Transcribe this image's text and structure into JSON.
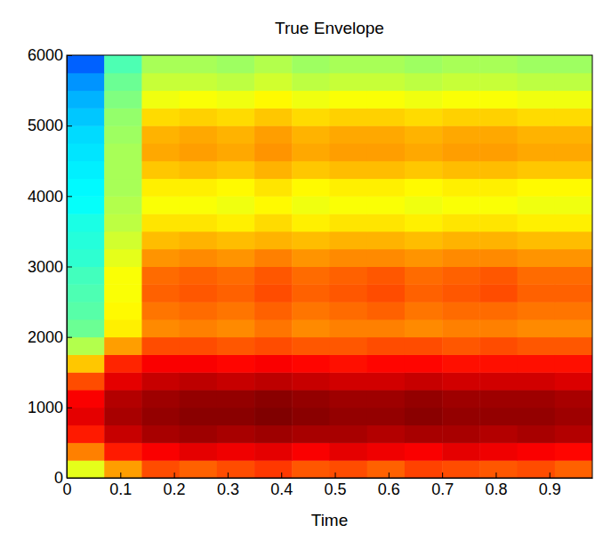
{
  "chart_data": {
    "type": "heatmap",
    "title": "True Envelope",
    "x_label": "Time",
    "xlim": [
      0,
      0.98
    ],
    "xticks": [
      0,
      0.1,
      0.2,
      0.3,
      0.4,
      0.5,
      0.6,
      0.7,
      0.8,
      0.9
    ],
    "ylim": [
      0,
      6000
    ],
    "yticks": [
      0,
      1000,
      2000,
      3000,
      4000,
      5000,
      6000
    ],
    "x_bins": [
      0,
      0.07,
      0.14,
      0.21,
      0.28,
      0.35,
      0.42,
      0.49,
      0.56,
      0.63,
      0.7,
      0.77,
      0.84,
      0.91,
      0.98
    ],
    "y_bins": [
      0,
      250,
      500,
      750,
      1000,
      1250,
      1500,
      1750,
      2000,
      2250,
      2500,
      2750,
      3000,
      3250,
      3500,
      3750,
      4000,
      4250,
      4500,
      4750,
      5000,
      5250,
      5500,
      5750,
      6000
    ],
    "zlim": [
      0,
      1
    ],
    "z": [
      [
        0.6,
        0.72,
        0.8,
        0.78,
        0.8,
        0.82,
        0.79,
        0.8,
        0.78,
        0.81,
        0.8,
        0.79,
        0.8,
        0.78
      ],
      [
        0.75,
        0.85,
        0.88,
        0.9,
        0.89,
        0.9,
        0.88,
        0.9,
        0.89,
        0.88,
        0.9,
        0.89,
        0.88,
        0.87
      ],
      [
        0.85,
        0.93,
        0.96,
        0.97,
        0.96,
        0.97,
        0.96,
        0.96,
        0.95,
        0.96,
        0.96,
        0.95,
        0.96,
        0.95
      ],
      [
        0.9,
        0.96,
        0.98,
        0.99,
        0.99,
        1,
        0.99,
        0.98,
        0.98,
        0.99,
        0.98,
        0.98,
        0.98,
        0.97
      ],
      [
        0.88,
        0.95,
        0.97,
        0.98,
        0.98,
        0.99,
        0.98,
        0.97,
        0.97,
        0.98,
        0.97,
        0.97,
        0.97,
        0.96
      ],
      [
        0.8,
        0.9,
        0.93,
        0.94,
        0.93,
        0.94,
        0.93,
        0.92,
        0.92,
        0.93,
        0.92,
        0.92,
        0.92,
        0.91
      ],
      [
        0.68,
        0.84,
        0.88,
        0.88,
        0.87,
        0.88,
        0.87,
        0.86,
        0.87,
        0.87,
        0.86,
        0.86,
        0.86,
        0.86
      ],
      [
        0.55,
        0.72,
        0.8,
        0.8,
        0.79,
        0.8,
        0.79,
        0.79,
        0.8,
        0.8,
        0.79,
        0.8,
        0.79,
        0.79
      ],
      [
        0.48,
        0.64,
        0.74,
        0.75,
        0.74,
        0.76,
        0.74,
        0.75,
        0.75,
        0.74,
        0.75,
        0.75,
        0.74,
        0.74
      ],
      [
        0.46,
        0.63,
        0.76,
        0.77,
        0.76,
        0.78,
        0.76,
        0.77,
        0.78,
        0.76,
        0.77,
        0.77,
        0.76,
        0.76
      ],
      [
        0.45,
        0.62,
        0.78,
        0.79,
        0.78,
        0.8,
        0.78,
        0.79,
        0.8,
        0.78,
        0.79,
        0.8,
        0.78,
        0.78
      ],
      [
        0.44,
        0.62,
        0.77,
        0.78,
        0.77,
        0.79,
        0.77,
        0.78,
        0.79,
        0.77,
        0.78,
        0.79,
        0.77,
        0.77
      ],
      [
        0.42,
        0.6,
        0.73,
        0.74,
        0.73,
        0.75,
        0.73,
        0.74,
        0.74,
        0.73,
        0.74,
        0.74,
        0.73,
        0.73
      ],
      [
        0.41,
        0.58,
        0.69,
        0.7,
        0.69,
        0.7,
        0.69,
        0.7,
        0.7,
        0.69,
        0.7,
        0.7,
        0.69,
        0.69
      ],
      [
        0.4,
        0.56,
        0.65,
        0.65,
        0.64,
        0.66,
        0.64,
        0.65,
        0.65,
        0.64,
        0.65,
        0.65,
        0.64,
        0.64
      ],
      [
        0.38,
        0.55,
        0.62,
        0.62,
        0.61,
        0.63,
        0.61,
        0.62,
        0.62,
        0.61,
        0.62,
        0.62,
        0.61,
        0.61
      ],
      [
        0.37,
        0.54,
        0.64,
        0.64,
        0.63,
        0.65,
        0.63,
        0.64,
        0.64,
        0.63,
        0.64,
        0.64,
        0.63,
        0.63
      ],
      [
        0.36,
        0.54,
        0.68,
        0.69,
        0.68,
        0.7,
        0.68,
        0.69,
        0.69,
        0.68,
        0.69,
        0.69,
        0.68,
        0.68
      ],
      [
        0.35,
        0.54,
        0.71,
        0.72,
        0.71,
        0.73,
        0.71,
        0.72,
        0.72,
        0.71,
        0.72,
        0.72,
        0.71,
        0.71
      ],
      [
        0.34,
        0.53,
        0.7,
        0.71,
        0.7,
        0.72,
        0.7,
        0.71,
        0.71,
        0.7,
        0.71,
        0.71,
        0.7,
        0.7
      ],
      [
        0.32,
        0.52,
        0.66,
        0.67,
        0.66,
        0.68,
        0.66,
        0.67,
        0.67,
        0.66,
        0.67,
        0.67,
        0.66,
        0.66
      ],
      [
        0.3,
        0.5,
        0.61,
        0.62,
        0.61,
        0.63,
        0.61,
        0.62,
        0.62,
        0.61,
        0.62,
        0.62,
        0.61,
        0.61
      ],
      [
        0.27,
        0.48,
        0.57,
        0.57,
        0.56,
        0.58,
        0.56,
        0.57,
        0.57,
        0.56,
        0.57,
        0.57,
        0.56,
        0.56
      ],
      [
        0.22,
        0.45,
        0.54,
        0.54,
        0.53,
        0.55,
        0.53,
        0.54,
        0.54,
        0.53,
        0.54,
        0.54,
        0.53,
        0.53
      ]
    ]
  }
}
